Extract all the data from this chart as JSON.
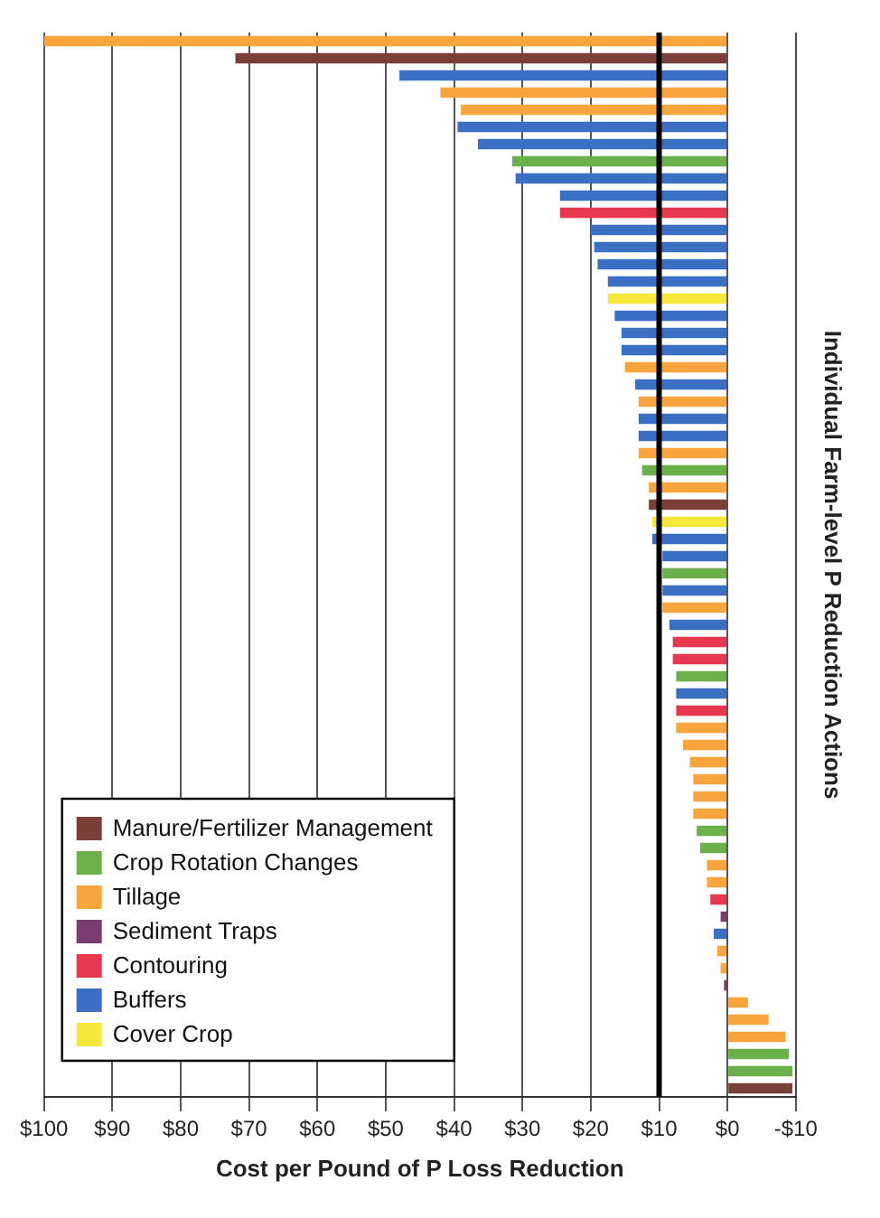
{
  "chart_data": {
    "type": "bar",
    "orientation": "horizontal",
    "xlabel": "Cost per Pound of P Loss Reduction",
    "ylabel": "Individual Farm-level P Reduction Actions",
    "categories": [
      null,
      null,
      null,
      null,
      null,
      null,
      null,
      null,
      null,
      null,
      null,
      null,
      null,
      null,
      null,
      null,
      null,
      null,
      null,
      null,
      null,
      null,
      null,
      null,
      null,
      null,
      null,
      null,
      null,
      null,
      null,
      null,
      null,
      null,
      null,
      null,
      null,
      null,
      null,
      null,
      null,
      null,
      null,
      null,
      null,
      null,
      null,
      null,
      null,
      null,
      null,
      null,
      null,
      null,
      null,
      null,
      null,
      null,
      null,
      null,
      null,
      null
    ],
    "series": [
      {
        "name": "Manure/Fertilizer Management",
        "color": "#7b3f3a",
        "values": [
          null,
          72,
          null,
          null,
          null,
          null,
          null,
          null,
          null,
          null,
          null,
          null,
          null,
          null,
          null,
          null,
          null,
          null,
          null,
          null,
          null,
          null,
          null,
          null,
          null,
          null,
          null,
          11.5,
          null,
          null,
          null,
          null,
          null,
          null,
          null,
          null,
          null,
          null,
          null,
          null,
          null,
          null,
          null,
          null,
          null,
          null,
          null,
          null,
          null,
          null,
          null,
          null,
          null,
          null,
          null,
          null,
          null,
          null,
          null,
          null,
          null,
          -9.5
        ]
      },
      {
        "name": "Crop Rotation Changes",
        "color": "#6bb04a",
        "values": [
          null,
          null,
          null,
          null,
          null,
          null,
          null,
          31.5,
          null,
          null,
          null,
          null,
          null,
          null,
          null,
          null,
          null,
          null,
          null,
          null,
          null,
          null,
          null,
          null,
          null,
          12.5,
          null,
          null,
          null,
          null,
          null,
          9.5,
          null,
          null,
          null,
          null,
          null,
          7.5,
          null,
          null,
          null,
          null,
          null,
          null,
          null,
          null,
          4.5,
          4,
          null,
          null,
          null,
          null,
          null,
          null,
          null,
          null,
          null,
          null,
          null,
          -9,
          -9.5,
          null
        ]
      },
      {
        "name": "Tillage",
        "color": "#f7a53c",
        "values": [
          100,
          null,
          null,
          42,
          39,
          null,
          null,
          null,
          null,
          null,
          null,
          null,
          null,
          null,
          null,
          null,
          null,
          null,
          null,
          15,
          null,
          13,
          null,
          null,
          13,
          null,
          11.5,
          null,
          null,
          null,
          null,
          null,
          null,
          9.5,
          null,
          null,
          null,
          null,
          null,
          null,
          7.5,
          6.5,
          5.5,
          5,
          5,
          5,
          null,
          null,
          3,
          3,
          null,
          null,
          null,
          1.5,
          1,
          null,
          -3,
          -6,
          -8.5,
          null,
          null,
          null
        ]
      },
      {
        "name": "Sediment Traps",
        "color": "#7a3b6e",
        "values": [
          null,
          null,
          null,
          null,
          null,
          null,
          null,
          null,
          null,
          null,
          null,
          null,
          null,
          null,
          null,
          null,
          null,
          null,
          null,
          null,
          null,
          null,
          null,
          null,
          null,
          null,
          null,
          null,
          null,
          null,
          null,
          null,
          null,
          null,
          null,
          null,
          null,
          null,
          null,
          null,
          null,
          null,
          null,
          null,
          null,
          null,
          null,
          null,
          null,
          null,
          null,
          1,
          null,
          null,
          null,
          0.5,
          null,
          null,
          null,
          null,
          null,
          null
        ]
      },
      {
        "name": "Contouring",
        "color": "#e8384f",
        "values": [
          null,
          null,
          null,
          null,
          null,
          null,
          null,
          null,
          null,
          null,
          24.5,
          null,
          null,
          null,
          null,
          null,
          null,
          null,
          null,
          null,
          null,
          null,
          null,
          null,
          null,
          null,
          null,
          null,
          null,
          null,
          null,
          null,
          null,
          null,
          null,
          8,
          8,
          null,
          null,
          7.5,
          null,
          null,
          null,
          null,
          null,
          null,
          null,
          null,
          null,
          null,
          2.5,
          null,
          null,
          null,
          null,
          null,
          null,
          null,
          null,
          null,
          null,
          null
        ]
      },
      {
        "name": "Buffers",
        "color": "#3b6fc4",
        "values": [
          null,
          null,
          48,
          null,
          null,
          39.5,
          36.5,
          null,
          31,
          24.5,
          null,
          20,
          19.5,
          19,
          17.5,
          null,
          16.5,
          15.5,
          15.5,
          null,
          13.5,
          null,
          13,
          13,
          null,
          null,
          null,
          null,
          null,
          11,
          9.5,
          null,
          9.5,
          null,
          8.5,
          null,
          null,
          null,
          7.5,
          null,
          null,
          null,
          null,
          null,
          null,
          null,
          null,
          null,
          null,
          null,
          null,
          null,
          2,
          null,
          null,
          null,
          null,
          null,
          null,
          null,
          null,
          null
        ]
      },
      {
        "name": "Cover Crop",
        "color": "#f5e83a",
        "values": [
          null,
          null,
          null,
          null,
          null,
          null,
          null,
          null,
          null,
          null,
          null,
          null,
          null,
          null,
          null,
          17.5,
          null,
          null,
          null,
          null,
          null,
          null,
          null,
          null,
          null,
          null,
          null,
          null,
          11,
          null,
          null,
          null,
          null,
          null,
          null,
          null,
          null,
          null,
          null,
          null,
          null,
          null,
          null,
          null,
          null,
          null,
          null,
          null,
          null,
          null,
          null,
          null,
          null,
          null,
          null,
          null,
          null,
          null,
          null,
          null,
          null,
          null
        ]
      }
    ],
    "xlim": [
      100,
      -10
    ],
    "xticks": [
      {
        "value": 100,
        "label": "$100"
      },
      {
        "value": 90,
        "label": "$90"
      },
      {
        "value": 80,
        "label": "$80"
      },
      {
        "value": 70,
        "label": "$70"
      },
      {
        "value": 60,
        "label": "$60"
      },
      {
        "value": 50,
        "label": "$50"
      },
      {
        "value": 40,
        "label": "$40"
      },
      {
        "value": 30,
        "label": "$30"
      },
      {
        "value": 20,
        "label": "$20"
      },
      {
        "value": 10,
        "label": "$10"
      },
      {
        "value": 0,
        "label": "$0"
      },
      {
        "value": -10,
        "label": "-$10"
      }
    ],
    "ref_lines": [
      {
        "axis": "x",
        "value": 10,
        "color": "#000000"
      }
    ],
    "grid": "x",
    "legend": "bottom left",
    "tick_labels": "x"
  }
}
